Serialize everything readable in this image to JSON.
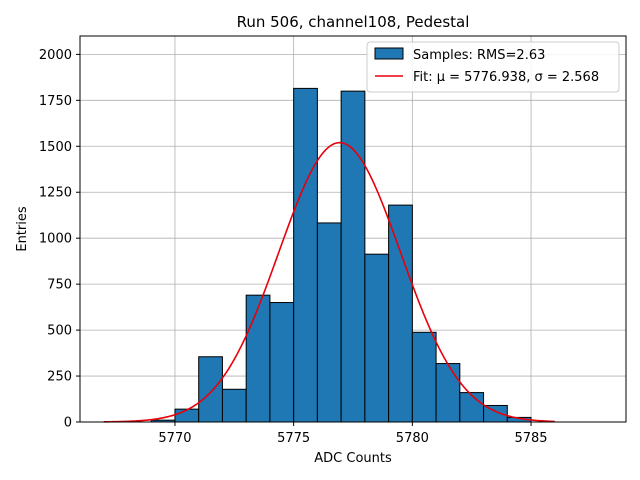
{
  "chart_data": {
    "type": "bar",
    "title": "Run 506, channel108, Pedestal",
    "xlabel": "ADC Counts",
    "ylabel": "Entries",
    "xlim": [
      5766.0,
      5789.0
    ],
    "ylim": [
      0,
      2100
    ],
    "xticks": [
      5770,
      5775,
      5780,
      5785
    ],
    "yticks": [
      0,
      250,
      500,
      750,
      1000,
      1250,
      1500,
      1750,
      2000
    ],
    "grid": true,
    "legend_position": "top-right",
    "bins": [
      {
        "x0": 5769.0,
        "x1": 5770.0,
        "value": 10
      },
      {
        "x0": 5770.0,
        "x1": 5771.0,
        "value": 70
      },
      {
        "x0": 5771.0,
        "x1": 5772.0,
        "value": 355
      },
      {
        "x0": 5772.0,
        "x1": 5773.0,
        "value": 178
      },
      {
        "x0": 5773.0,
        "x1": 5774.0,
        "value": 690
      },
      {
        "x0": 5774.0,
        "x1": 5775.0,
        "value": 650
      },
      {
        "x0": 5775.0,
        "x1": 5776.0,
        "value": 1815
      },
      {
        "x0": 5776.0,
        "x1": 5777.0,
        "value": 1083
      },
      {
        "x0": 5777.0,
        "x1": 5778.0,
        "value": 1800
      },
      {
        "x0": 5778.0,
        "x1": 5779.0,
        "value": 913
      },
      {
        "x0": 5779.0,
        "x1": 5780.0,
        "value": 1180
      },
      {
        "x0": 5780.0,
        "x1": 5781.0,
        "value": 488
      },
      {
        "x0": 5781.0,
        "x1": 5782.0,
        "value": 318
      },
      {
        "x0": 5782.0,
        "x1": 5783.0,
        "value": 160
      },
      {
        "x0": 5783.0,
        "x1": 5784.0,
        "value": 90
      },
      {
        "x0": 5784.0,
        "x1": 5785.0,
        "value": 25
      }
    ],
    "fit": {
      "mu": 5776.938,
      "sigma": 2.568,
      "amplitude": 1520,
      "x_range": [
        5767.0,
        5786.0
      ]
    },
    "series": [
      {
        "name": "Samples: RMS=2.63",
        "kind": "histogram",
        "color": "#1f77b4",
        "edgecolor": "#000000"
      },
      {
        "name": "Fit: μ = 5776.938, σ = 2.568",
        "kind": "line",
        "color": "#e8000b"
      }
    ]
  }
}
